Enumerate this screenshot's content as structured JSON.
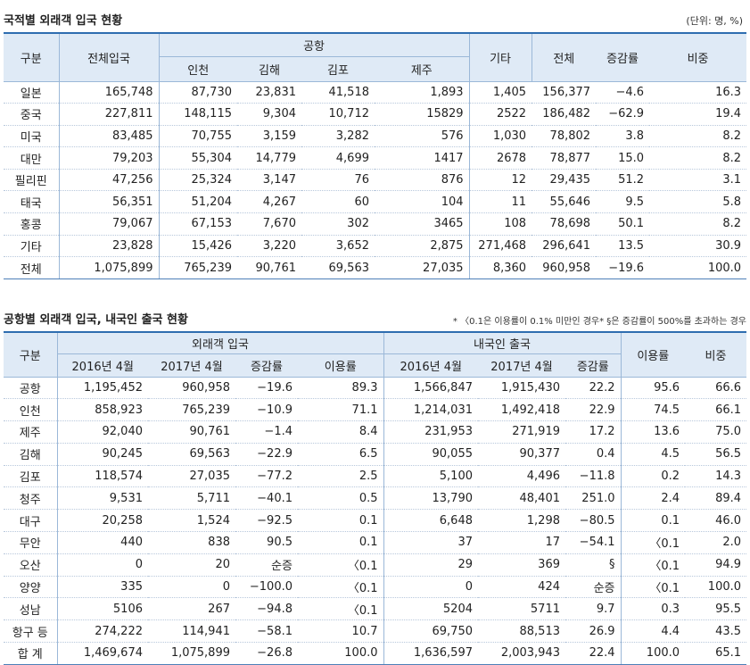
{
  "table1": {
    "title": "국적별 외래객 입국 현황",
    "unit": "(단위: 명, %)",
    "headers": {
      "gubun": "구분",
      "total_entry": "전체입국",
      "airport": "공항",
      "incheon": "인천",
      "gimhae": "김해",
      "gimpo": "김포",
      "jeju": "제주",
      "other": "기타",
      "total": "전체",
      "change": "증감률",
      "share": "비중"
    },
    "rows": [
      [
        "일본",
        "165,748",
        "87,730",
        "23,831",
        "41,518",
        "1,893",
        "1,405",
        "156,377",
        "−4.6",
        "16.3"
      ],
      [
        "중국",
        "227,811",
        "148,115",
        "9,304",
        "10,712",
        "15829",
        "2522",
        "186,482",
        "−62.9",
        "19.4"
      ],
      [
        "미국",
        "83,485",
        "70,755",
        "3,159",
        "3,282",
        "576",
        "1,030",
        "78,802",
        "3.8",
        "8.2"
      ],
      [
        "대만",
        "79,203",
        "55,304",
        "14,779",
        "4,699",
        "1417",
        "2678",
        "78,877",
        "15.0",
        "8.2"
      ],
      [
        "필리핀",
        "47,256",
        "25,324",
        "3,147",
        "76",
        "876",
        "12",
        "29,435",
        "51.2",
        "3.1"
      ],
      [
        "태국",
        "56,351",
        "51,204",
        "4,267",
        "60",
        "104",
        "11",
        "55,646",
        "9.5",
        "5.8"
      ],
      [
        "홍콩",
        "79,067",
        "67,153",
        "7,670",
        "302",
        "3465",
        "108",
        "78,698",
        "50.1",
        "8.2"
      ],
      [
        "기타",
        "23,828",
        "15,426",
        "3,220",
        "3,652",
        "2,875",
        "271,468",
        "296,641",
        "13.5",
        "30.9"
      ],
      [
        "전체",
        "1,075,899",
        "765,239",
        "90,761",
        "69,563",
        "27,035",
        "8,360",
        "960,958",
        "−19.6",
        "100.0"
      ]
    ]
  },
  "table2": {
    "title": "공항별 외래객 입국, 내국인 출국 현황",
    "note": "* 〈0.1은 이용률이 0.1% 미만인 경우* §은 증감률이 500%를 초과하는 경우",
    "headers": {
      "gubun": "구분",
      "foreign_entry": "외래객 입국",
      "domestic_exit": "내국인 출국",
      "apr2016": "2016년 4월",
      "apr2017": "2017년 4월",
      "change": "증감률",
      "usage": "이용률",
      "share": "비중"
    },
    "rows": [
      [
        "공항",
        "1,195,452",
        "960,958",
        "−19.6",
        "89.3",
        "1,566,847",
        "1,915,430",
        "22.2",
        "95.6",
        "66.6"
      ],
      [
        "인천",
        "858,923",
        "765,239",
        "−10.9",
        "71.1",
        "1,214,031",
        "1,492,418",
        "22.9",
        "74.5",
        "66.1"
      ],
      [
        "제주",
        "92,040",
        "90,761",
        "−1.4",
        "8.4",
        "231,953",
        "271,919",
        "17.2",
        "13.6",
        "75.0"
      ],
      [
        "김해",
        "90,245",
        "69,563",
        "−22.9",
        "6.5",
        "90,055",
        "90,377",
        "0.4",
        "4.5",
        "56.5"
      ],
      [
        "김포",
        "118,574",
        "27,035",
        "−77.2",
        "2.5",
        "5,100",
        "4,496",
        "−11.8",
        "0.2",
        "14.3"
      ],
      [
        "청주",
        "9,531",
        "5,711",
        "−40.1",
        "0.5",
        "13,790",
        "48,401",
        "251.0",
        "2.4",
        "89.4"
      ],
      [
        "대구",
        "20,258",
        "1,524",
        "−92.5",
        "0.1",
        "6,648",
        "1,298",
        "−80.5",
        "0.1",
        "46.0"
      ],
      [
        "무안",
        "440",
        "838",
        "90.5",
        "0.1",
        "37",
        "17",
        "−54.1",
        "〈0.1",
        "2.0"
      ],
      [
        "오산",
        "0",
        "20",
        "순증",
        "〈0.1",
        "29",
        "369",
        "§",
        "〈0.1",
        "94.9"
      ],
      [
        "양양",
        "335",
        "0",
        "−100.0",
        "〈0.1",
        "0",
        "424",
        "순증",
        "〈0.1",
        "100.0"
      ],
      [
        "성남",
        "5106",
        "267",
        "−94.8",
        "〈0.1",
        "5204",
        "5711",
        "9.7",
        "0.3",
        "95.5"
      ],
      [
        "항구 등",
        "274,222",
        "114,941",
        "−58.1",
        "10.7",
        "69,750",
        "88,513",
        "26.9",
        "4.4",
        "43.5"
      ],
      [
        "합 계",
        "1,469,674",
        "1,075,899",
        "−26.8",
        "100.0",
        "1,636,597",
        "2,003,943",
        "22.4",
        "100.0",
        "65.1"
      ]
    ]
  }
}
